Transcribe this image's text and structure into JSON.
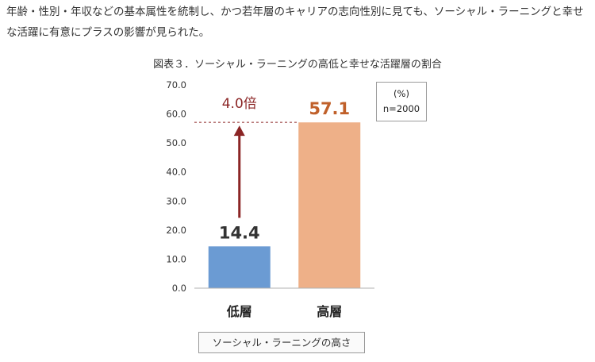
{
  "intro_text": "年齢・性別・年収などの基本属性を統制し、かつ若年層のキャリアの志向性別に見ても、ソーシャル・ラーニングと幸せな活躍に有意にプラスの影響が見られた。",
  "chart_data": {
    "type": "bar",
    "title": "図表３．ソーシャル・ラーニングの高低と幸せな活躍層の割合",
    "categories": [
      "低層",
      "高層"
    ],
    "values": [
      14.4,
      57.1
    ],
    "value_labels": [
      "14.4",
      "57.1"
    ],
    "bar_colors": [
      "#6b9bd3",
      "#eeb088"
    ],
    "value_label_colors": [
      "#333333",
      "#c0602a"
    ],
    "ylim": [
      0,
      70
    ],
    "yticks": [
      0,
      10,
      20,
      30,
      40,
      50,
      60,
      70
    ],
    "ytick_labels": [
      "0.0",
      "10.0",
      "20.0",
      "30.0",
      "40.0",
      "50.0",
      "60.0",
      "70.0"
    ],
    "ylabel": "",
    "xlabel": "ソーシャル・ラーニングの高さ",
    "unit_note": "(%)",
    "sample_note": "n=2000",
    "annotation": {
      "text": "4.0倍",
      "color": "#8b2525",
      "from_value": 14.4,
      "to_value": 57.1
    },
    "grid": false,
    "legend": "top-right"
  }
}
